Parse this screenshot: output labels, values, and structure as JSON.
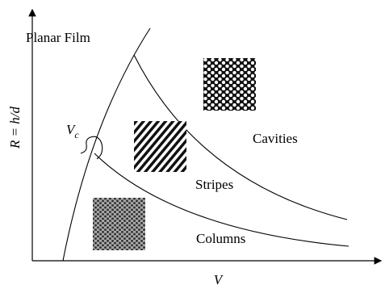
{
  "regions": {
    "planar_film": "Planar Film",
    "cavities": "Cavities",
    "stripes": "Stripes",
    "columns": "Columns"
  },
  "critical_line": {
    "symbol": "V",
    "subscript": "c"
  },
  "axes": {
    "y_label": "R = h/d",
    "x_label": "V"
  }
}
